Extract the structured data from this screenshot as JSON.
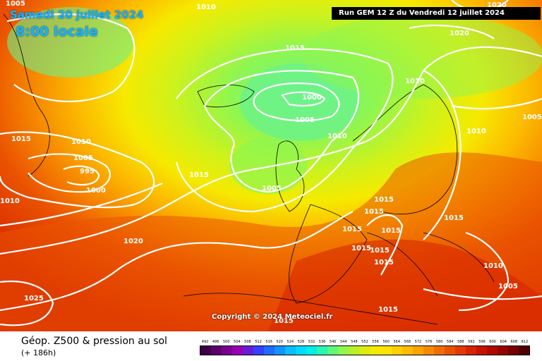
{
  "header": {
    "date": "Samedi 20 juillet 2024",
    "time": "8:00 locale",
    "run": "Run GEM 12 Z du Vendredi 12 juillet 2024"
  },
  "copyright": "Copyright © 2024 Meteociel.fr",
  "legend": {
    "title": "Géop. Z500 & pression au sol",
    "subtitle": "(+ 186h)",
    "scale_labels": [
      "492",
      "496",
      "500",
      "504",
      "508",
      "512",
      "516",
      "520",
      "524",
      "528",
      "532",
      "536",
      "540",
      "544",
      "548",
      "552",
      "556",
      "560",
      "564",
      "568",
      "572",
      "576",
      "580",
      "584",
      "588",
      "592",
      "596",
      "600",
      "604",
      "608",
      "612"
    ],
    "scale_colors": [
      "#3d0046",
      "#5b006b",
      "#7a0090",
      "#9a00b4",
      "#6a1bd8",
      "#3341ff",
      "#1f6aff",
      "#1493ff",
      "#0bbcff",
      "#00dcff",
      "#00f0e6",
      "#2bf5b0",
      "#5ef87a",
      "#8ff650",
      "#b8f02a",
      "#dcec10",
      "#f6ea00",
      "#fde300",
      "#fdd000",
      "#fcbc00",
      "#faa400",
      "#f68a00",
      "#f16f00",
      "#ea5300",
      "#e23a00",
      "#d62300",
      "#c61200",
      "#b00a00",
      "#950500",
      "#740000",
      "#4f0000"
    ]
  },
  "isobars": [
    {
      "label": "1005"
    },
    {
      "label": "1010"
    },
    {
      "label": "1020"
    },
    {
      "label": "1015"
    },
    {
      "label": "1020"
    },
    {
      "label": "1000"
    },
    {
      "label": "1005"
    },
    {
      "label": "1010"
    },
    {
      "label": "1015"
    },
    {
      "label": "1010"
    },
    {
      "label": "1005"
    },
    {
      "label": "995"
    },
    {
      "label": "1000"
    },
    {
      "label": "1015"
    },
    {
      "label": "1005"
    },
    {
      "label": "1010"
    },
    {
      "label": "1010"
    },
    {
      "label": "1005"
    },
    {
      "label": "1010"
    },
    {
      "label": "1015"
    },
    {
      "label": "1015"
    },
    {
      "label": "1015"
    },
    {
      "label": "1015"
    },
    {
      "label": "1015"
    },
    {
      "label": "1015"
    },
    {
      "label": "1015"
    },
    {
      "label": "1015"
    },
    {
      "label": "1020"
    },
    {
      "label": "1010"
    },
    {
      "label": "1005"
    },
    {
      "label": "1015"
    },
    {
      "label": "1025"
    },
    {
      "label": "1015"
    }
  ]
}
